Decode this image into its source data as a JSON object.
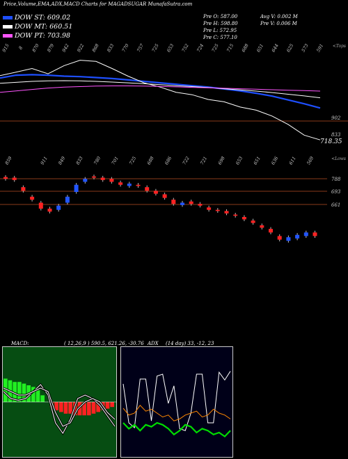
{
  "header": {
    "title": "Price,Volume,EMA,ADX,MACD Charts for MAGADSUGAR MunafaSutra.com"
  },
  "legend": [
    {
      "label": "DOW ST: 609.02",
      "color": "#1e4fff"
    },
    {
      "label": "DOW MT: 660.51",
      "color": "#ffffff"
    },
    {
      "label": "DOW PT: 703.98",
      "color": "#ff55ff"
    }
  ],
  "info": {
    "pre_o": "Pre O: 587.00",
    "pre_h": "Pre H: 598.80",
    "pre_l": "Pre L: 572.95",
    "pre_c": "Pre C: 577.10",
    "avg_v": "Avg V: 0.002 M",
    "pre_v": "Pre V: 0.006 M"
  },
  "chart_data": [
    {
      "type": "line",
      "name": "price-ema-panel",
      "corner_label": "<Tops",
      "top_labels": [
        "915",
        "8",
        "870",
        "879",
        "942",
        "922",
        "868",
        "833",
        "770",
        "757",
        "725",
        "653",
        "752",
        "724",
        "725",
        "715",
        "688",
        "651",
        "644",
        "625",
        "573",
        "591"
      ],
      "right_labels": [
        "902",
        "833"
      ],
      "last_value_label": "718.35",
      "series": [
        {
          "color": "#1e4fff",
          "values": [
            860,
            872,
            874,
            872,
            868,
            866,
            862,
            858,
            852,
            846,
            840,
            834,
            828,
            822,
            814,
            806,
            796,
            784,
            768,
            752,
            734
          ]
        },
        {
          "color": "#ffffff",
          "values": [
            870,
            885,
            900,
            878,
            912,
            935,
            930,
            900,
            868,
            840,
            822,
            800,
            790,
            770,
            760,
            738,
            725,
            700,
            665,
            620,
            600
          ]
        },
        {
          "color": "#ffffff",
          "values": [
            838,
            842,
            846,
            848,
            849,
            848,
            846,
            843,
            840,
            836,
            832,
            828,
            824,
            820,
            815,
            810,
            805,
            799,
            792,
            785,
            777
          ]
        },
        {
          "color": "#ff55ff",
          "values": [
            800,
            806,
            812,
            818,
            822,
            824,
            826,
            827,
            827,
            826,
            825,
            823,
            821,
            819,
            817,
            815,
            813,
            811,
            809,
            807,
            805
          ]
        }
      ]
    },
    {
      "type": "bar",
      "name": "candlestick-panel",
      "corner_label": "<Lows",
      "top_labels": [
        "859",
        "",
        "911",
        "849",
        "833",
        "780",
        "701",
        "725",
        "688",
        "686",
        "722",
        "721",
        "698",
        "653",
        "651",
        "636",
        "611",
        "569"
      ],
      "right_labels": [
        "788",
        "693",
        "661"
      ],
      "series": [
        {
          "name": "close",
          "values": [
            880,
            878,
            860,
            845,
            830,
            825,
            835,
            850,
            870,
            880,
            882,
            878,
            875,
            870,
            872,
            868,
            860,
            855,
            848,
            838,
            840,
            838,
            835,
            828,
            826,
            822,
            818,
            812,
            806,
            798,
            790,
            778,
            782,
            786,
            790,
            784
          ]
        },
        {
          "name": "open",
          "values": [
            883,
            882,
            866,
            850,
            840,
            830,
            828,
            840,
            858,
            875,
            884,
            882,
            880,
            874,
            868,
            870,
            866,
            860,
            854,
            845,
            836,
            842,
            838,
            832,
            828,
            826,
            820,
            816,
            810,
            802,
            796,
            784,
            776,
            780,
            784,
            790
          ]
        }
      ]
    },
    {
      "type": "bar",
      "name": "macd-panel",
      "title": "MACD:",
      "values_text": "( 12,26,9 ) 590.5, 621.26, -30.76",
      "histogram": [
        14,
        13,
        12,
        12,
        11,
        10,
        9,
        7,
        4,
        0,
        -3,
        -5,
        -6,
        -7,
        -7,
        -8,
        -8,
        -8,
        -8,
        -7,
        -6,
        -5,
        -4,
        -3
      ],
      "lines": [
        {
          "color": "#ffffff",
          "values": [
            0.3,
            0.1,
            0.05,
            0.1,
            0.3,
            0.5,
            0.2,
            -0.6,
            -0.9,
            -0.5,
            0.1,
            0.2,
            0.1,
            -0.1,
            -0.4,
            -0.7
          ]
        },
        {
          "color": "#ffffff",
          "values": [
            0.4,
            0.3,
            0.2,
            0.2,
            0.3,
            0.4,
            0.3,
            -0.3,
            -0.7,
            -0.6,
            -0.2,
            0.0,
            0.1,
            0.0,
            -0.3,
            -0.5
          ]
        }
      ]
    },
    {
      "type": "line",
      "name": "adx-panel",
      "title": "ADX",
      "values_text": "(14 day) 33, -12, 23",
      "series": [
        {
          "color": "#ffffff",
          "values": [
            70,
            30,
            25,
            75,
            75,
            32,
            78,
            80,
            50,
            68,
            24,
            22,
            40,
            80,
            80,
            30,
            30,
            82,
            74,
            83
          ]
        },
        {
          "color": "#ff8800",
          "values": [
            45,
            38,
            40,
            48,
            42,
            44,
            40,
            36,
            38,
            32,
            34,
            38,
            40,
            42,
            36,
            38,
            44,
            40,
            38,
            34
          ]
        },
        {
          "color": "#00dd00",
          "values": [
            30,
            24,
            28,
            22,
            28,
            26,
            30,
            28,
            24,
            18,
            22,
            28,
            26,
            20,
            24,
            22,
            18,
            20,
            16,
            22
          ]
        }
      ]
    }
  ]
}
